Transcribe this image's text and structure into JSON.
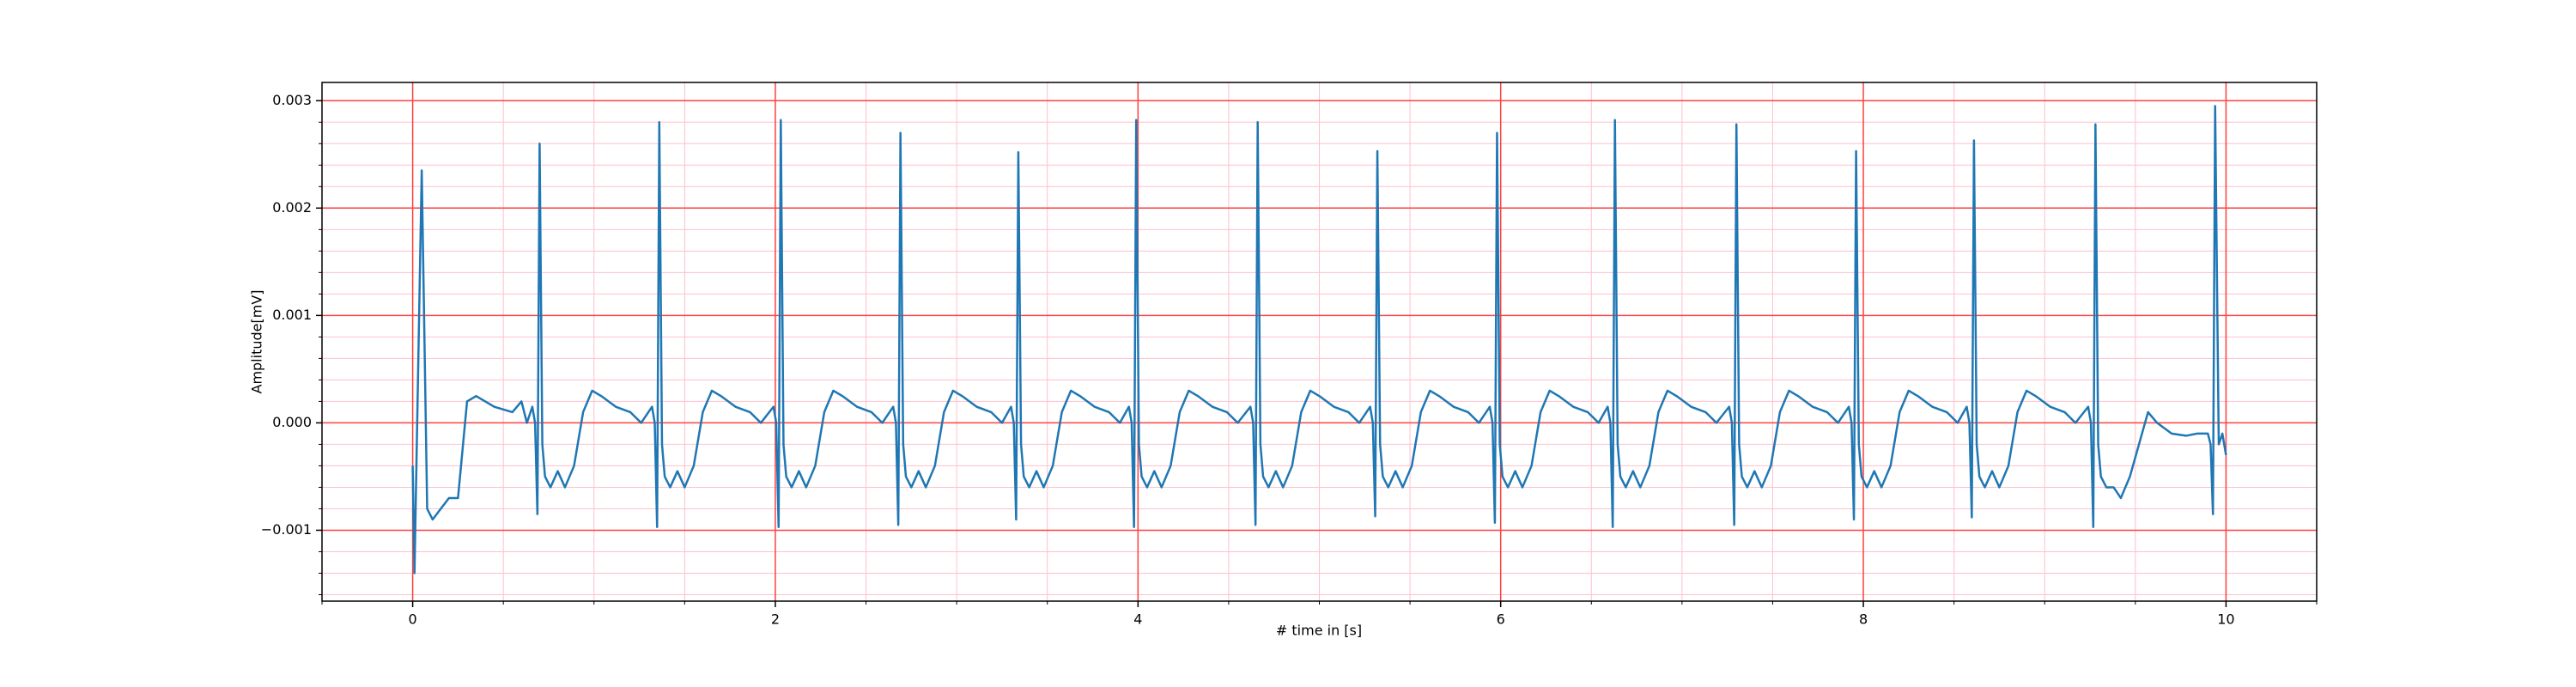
{
  "chart_data": {
    "type": "line",
    "xlabel": "# time in [s]",
    "ylabel": "Amplitude[mV]",
    "xlim": [
      -0.5,
      10.5
    ],
    "ylim": [
      -0.00166,
      0.00317
    ],
    "xticks": [
      0,
      2,
      4,
      6,
      8,
      10
    ],
    "yticks": [
      {
        "value": -0.001,
        "label": "−0.001"
      },
      {
        "value": 0,
        "label": "0.000"
      },
      {
        "value": 0.001,
        "label": "0.001"
      },
      {
        "value": 0.002,
        "label": "0.002"
      },
      {
        "value": 0.003,
        "label": "0.003"
      }
    ],
    "xminorticks": [
      -0.5,
      0.5,
      1,
      1.5,
      2.5,
      3,
      3.5,
      4.5,
      5,
      5.5,
      6.5,
      7,
      7.5,
      8.5,
      9,
      9.5,
      10.5
    ],
    "yminorticks": [
      -0.0016,
      -0.0014,
      -0.0012,
      -0.0008,
      -0.0006,
      -0.0004,
      -0.0002,
      0.0002,
      0.0004,
      0.0006,
      0.0008,
      0.0012,
      0.0014,
      0.0016,
      0.0018,
      0.0022,
      0.0024,
      0.0026,
      0.0028
    ],
    "grid": {
      "major_color": "#ff4040",
      "minor_color": "#ffc0cc"
    },
    "x": [
      0,
      0.01,
      0.05,
      0.08,
      0.11,
      0.2,
      0.25,
      0.3,
      0.35,
      0.45,
      0.55,
      0.6,
      0.63,
      0.66,
      0.675,
      0.688,
      0.7,
      0.715,
      0.73,
      0.76,
      0.8,
      0.84,
      0.89,
      0.94,
      0.99,
      1.04,
      1.12,
      1.2,
      1.26,
      1.32,
      1.335,
      1.348,
      1.36,
      1.375,
      1.39,
      1.42,
      1.46,
      1.5,
      1.55,
      1.6,
      1.65,
      1.7,
      1.78,
      1.86,
      1.92,
      1.99,
      2.005,
      2.018,
      2.03,
      2.045,
      2.06,
      2.09,
      2.13,
      2.17,
      2.22,
      2.27,
      2.32,
      2.37,
      2.45,
      2.53,
      2.59,
      2.65,
      2.665,
      2.678,
      2.69,
      2.705,
      2.72,
      2.75,
      2.79,
      2.83,
      2.88,
      2.93,
      2.98,
      3.03,
      3.11,
      3.19,
      3.25,
      3.3,
      3.315,
      3.328,
      3.34,
      3.355,
      3.37,
      3.4,
      3.44,
      3.48,
      3.53,
      3.58,
      3.63,
      3.68,
      3.76,
      3.84,
      3.9,
      3.95,
      3.965,
      3.978,
      3.99,
      4.005,
      4.02,
      4.05,
      4.09,
      4.13,
      4.18,
      4.23,
      4.28,
      4.33,
      4.41,
      4.49,
      4.55,
      4.62,
      4.635,
      4.648,
      4.66,
      4.675,
      4.69,
      4.72,
      4.76,
      4.8,
      4.85,
      4.9,
      4.95,
      5,
      5.08,
      5.16,
      5.22,
      5.28,
      5.295,
      5.308,
      5.32,
      5.335,
      5.35,
      5.38,
      5.42,
      5.46,
      5.51,
      5.56,
      5.61,
      5.66,
      5.74,
      5.82,
      5.88,
      5.94,
      5.955,
      5.968,
      5.98,
      5.995,
      6.01,
      6.04,
      6.08,
      6.12,
      6.17,
      6.22,
      6.27,
      6.32,
      6.4,
      6.48,
      6.54,
      6.59,
      6.605,
      6.618,
      6.63,
      6.645,
      6.66,
      6.69,
      6.73,
      6.77,
      6.82,
      6.87,
      6.92,
      6.97,
      7.05,
      7.13,
      7.19,
      7.26,
      7.275,
      7.288,
      7.3,
      7.315,
      7.33,
      7.36,
      7.4,
      7.44,
      7.49,
      7.54,
      7.59,
      7.64,
      7.72,
      7.8,
      7.86,
      7.92,
      7.935,
      7.948,
      7.96,
      7.975,
      7.99,
      8.02,
      8.06,
      8.1,
      8.15,
      8.2,
      8.25,
      8.3,
      8.38,
      8.46,
      8.52,
      8.57,
      8.585,
      8.598,
      8.61,
      8.625,
      8.64,
      8.67,
      8.71,
      8.75,
      8.8,
      8.85,
      8.9,
      8.95,
      9.03,
      9.11,
      9.17,
      9.24,
      9.255,
      9.268,
      9.28,
      9.295,
      9.31,
      9.34,
      9.38,
      9.42,
      9.47,
      9.52,
      9.57,
      9.62,
      9.7,
      9.78,
      9.84,
      9.9,
      9.915,
      9.928,
      9.94,
      9.96,
      9.98,
      10
    ],
    "series": [
      {
        "color": "#1f77b4",
        "values": [
          -0.0004,
          -0.0014,
          0.00235,
          -0.0008,
          -0.0009,
          -0.0007,
          -0.0007,
          0.0002,
          0.00025,
          0.00015,
          0.0001,
          0.0002,
          0,
          0.00015,
          0,
          -0.00085,
          0.0026,
          -0.0002,
          -0.0005,
          -0.0006,
          -0.00045,
          -0.0006,
          -0.0004,
          0.0001,
          0.0003,
          0.00025,
          0.00015,
          0.0001,
          0,
          0.00015,
          0,
          -0.00097,
          0.0028,
          -0.0002,
          -0.0005,
          -0.0006,
          -0.00045,
          -0.0006,
          -0.0004,
          0.0001,
          0.0003,
          0.00025,
          0.00015,
          0.0001,
          0,
          0.00015,
          0,
          -0.00097,
          0.00282,
          -0.0002,
          -0.0005,
          -0.0006,
          -0.00045,
          -0.0006,
          -0.0004,
          0.0001,
          0.0003,
          0.00025,
          0.00015,
          0.0001,
          0,
          0.00015,
          0,
          -0.00095,
          0.0027,
          -0.0002,
          -0.0005,
          -0.0006,
          -0.00045,
          -0.0006,
          -0.0004,
          0.0001,
          0.0003,
          0.00025,
          0.00015,
          0.0001,
          0,
          0.00015,
          0,
          -0.0009,
          0.00252,
          -0.0002,
          -0.0005,
          -0.0006,
          -0.00045,
          -0.0006,
          -0.0004,
          0.0001,
          0.0003,
          0.00025,
          0.00015,
          0.0001,
          0,
          0.00015,
          0,
          -0.00097,
          0.00282,
          -0.0002,
          -0.0005,
          -0.0006,
          -0.00045,
          -0.0006,
          -0.0004,
          0.0001,
          0.0003,
          0.00025,
          0.00015,
          0.0001,
          0,
          0.00015,
          0,
          -0.00095,
          0.0028,
          -0.0002,
          -0.0005,
          -0.0006,
          -0.00045,
          -0.0006,
          -0.0004,
          0.0001,
          0.0003,
          0.00025,
          0.00015,
          0.0001,
          0,
          0.00015,
          0,
          -0.00087,
          0.00253,
          -0.0002,
          -0.0005,
          -0.0006,
          -0.00045,
          -0.0006,
          -0.0004,
          0.0001,
          0.0003,
          0.00025,
          0.00015,
          0.0001,
          0,
          0.00015,
          0,
          -0.00093,
          0.0027,
          -0.0002,
          -0.0005,
          -0.0006,
          -0.00045,
          -0.0006,
          -0.0004,
          0.0001,
          0.0003,
          0.00025,
          0.00015,
          0.0001,
          0,
          0.00015,
          0,
          -0.00097,
          0.00282,
          -0.0002,
          -0.0005,
          -0.0006,
          -0.00045,
          -0.0006,
          -0.0004,
          0.0001,
          0.0003,
          0.00025,
          0.00015,
          0.0001,
          0,
          0.00015,
          0,
          -0.00095,
          0.00278,
          -0.0002,
          -0.0005,
          -0.0006,
          -0.00045,
          -0.0006,
          -0.0004,
          0.0001,
          0.0003,
          0.00025,
          0.00015,
          0.0001,
          0,
          0.00015,
          0,
          -0.0009,
          0.00253,
          -0.0002,
          -0.0005,
          -0.0006,
          -0.00045,
          -0.0006,
          -0.0004,
          0.0001,
          0.0003,
          0.00025,
          0.00015,
          0.0001,
          0,
          0.00015,
          0,
          -0.00088,
          0.00263,
          -0.0002,
          -0.0005,
          -0.0006,
          -0.00045,
          -0.0006,
          -0.0004,
          0.0001,
          0.0003,
          0.00025,
          0.00015,
          0.0001,
          0,
          0.00015,
          0,
          -0.00097,
          0.00278,
          -0.0002,
          -0.0005,
          -0.0006,
          -0.0006,
          -0.0007,
          -0.0005,
          -0.0002,
          0.0001,
          0,
          -0.0001,
          -0.00012,
          -0.0001,
          -0.0001,
          -0.0002,
          -0.00085,
          0.00295,
          -0.0002,
          -0.0001,
          -0.0003
        ]
      }
    ]
  }
}
